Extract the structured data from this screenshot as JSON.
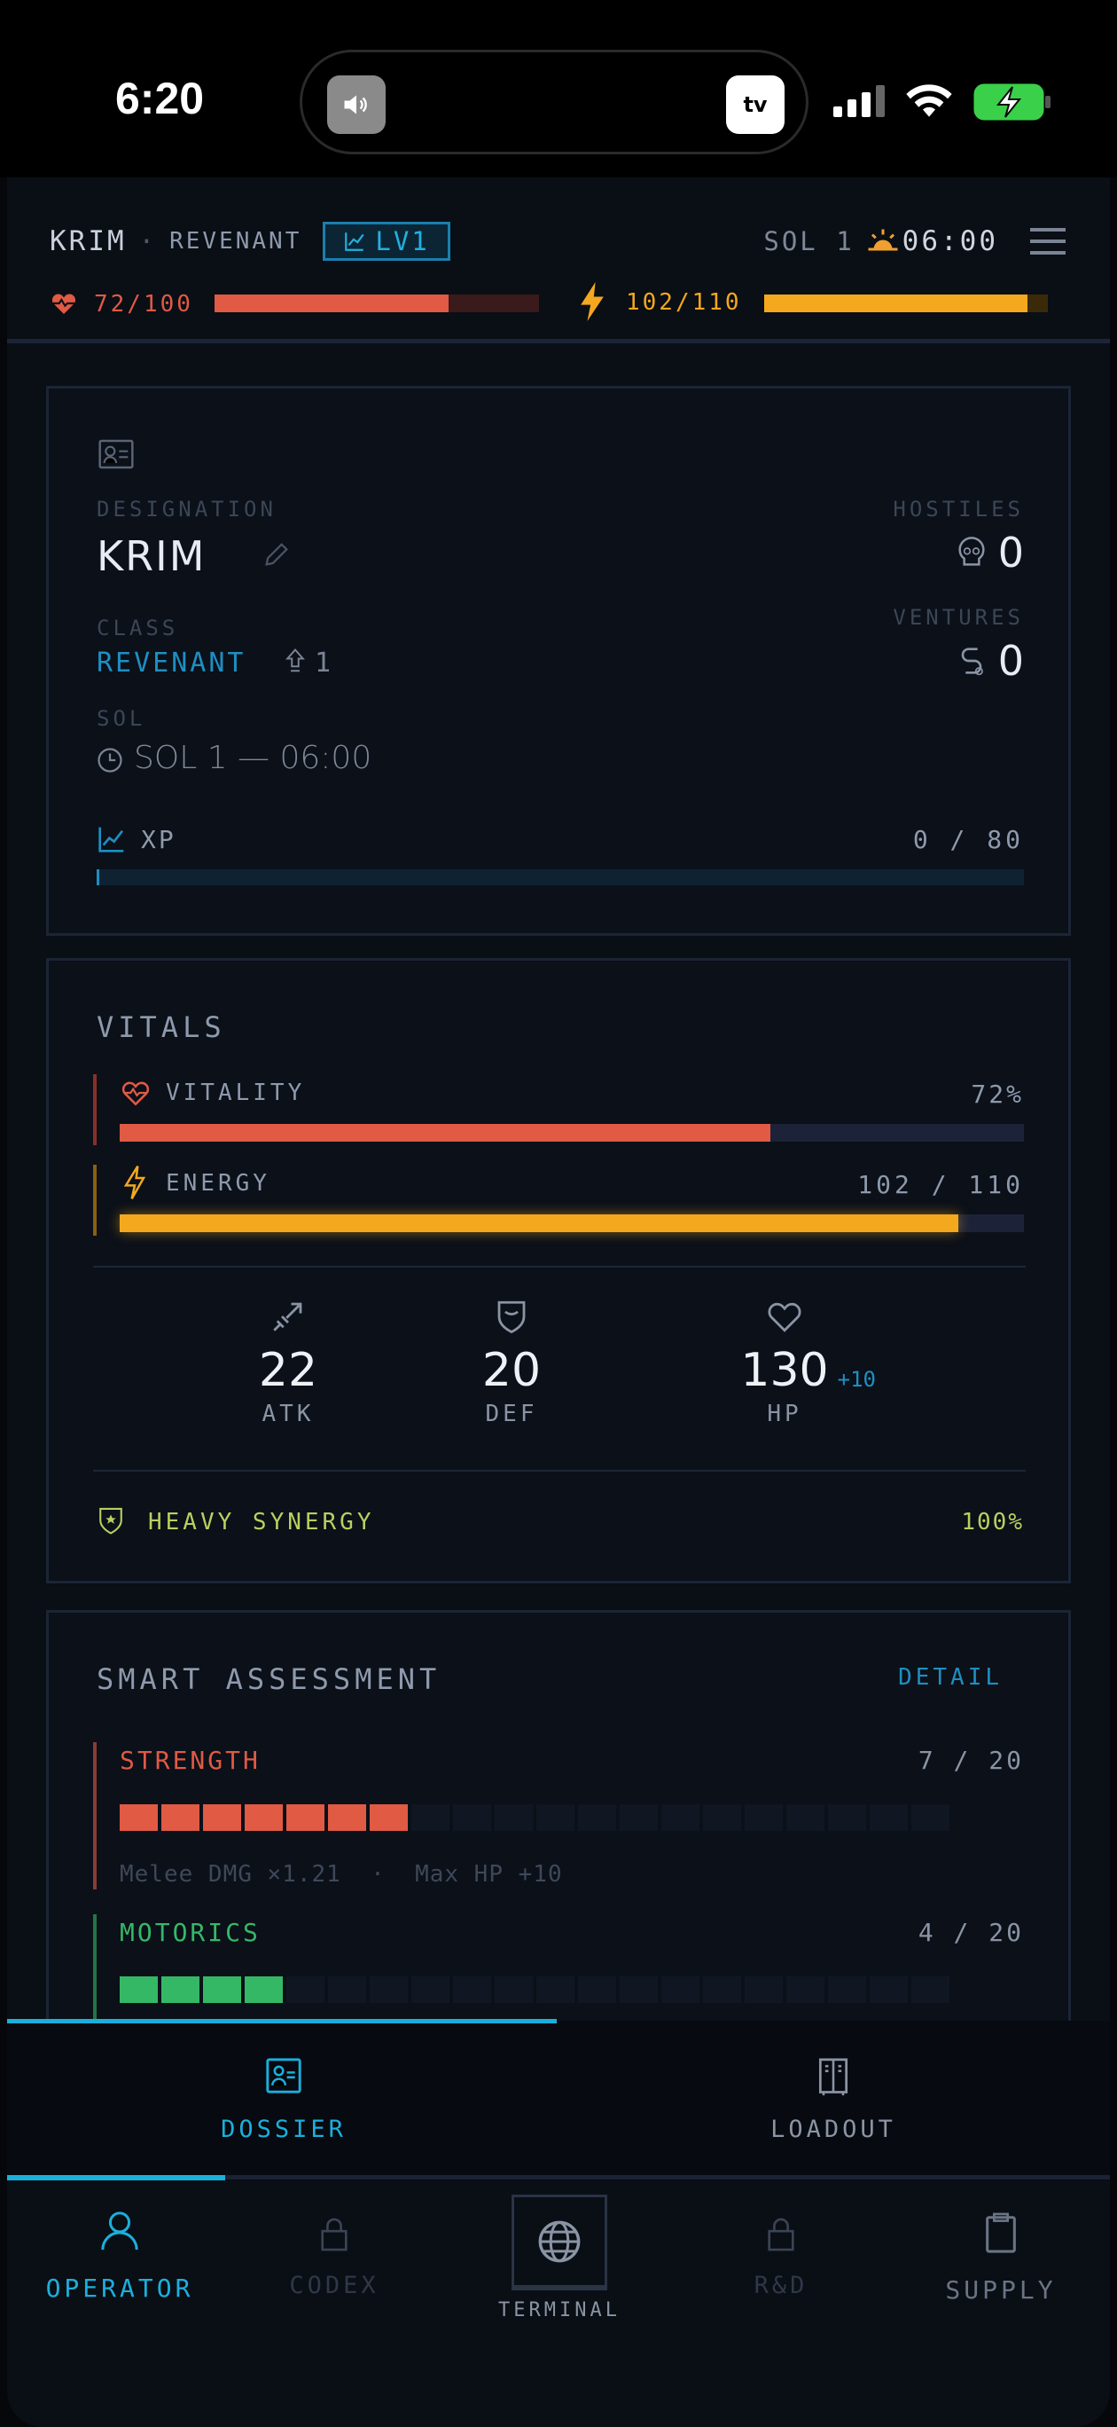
{
  "status_bar": {
    "time": "6:20",
    "speaker_icon": "speaker-icon",
    "appletv_label": "tv"
  },
  "header": {
    "name": "KRIM",
    "separator": "·",
    "class": "REVENANT",
    "level": "LV1",
    "sol": "SOL 1",
    "clock": "06:00",
    "hp": "72/100",
    "hp_pct": 72,
    "energy": "102/110",
    "energy_pct": 92.7,
    "colors": {
      "hp": "#e05a44",
      "energy": "#f3a81d",
      "accent": "#1ea5d6"
    }
  },
  "dossier": {
    "designation_label": "DESIGNATION",
    "name": "KRIM",
    "class_label": "CLASS",
    "class": "REVENANT",
    "class_rank": "1",
    "sol_label": "SOL",
    "sol_value": "SOL 1 — 06:00",
    "hostiles_label": "HOSTILES",
    "hostiles": "0",
    "ventures_label": "VENTURES",
    "ventures": "0",
    "xp_label": "XP",
    "xp_value": "0 / 80",
    "xp_pct": 0
  },
  "vitals": {
    "title": "VITALS",
    "vitality_label": "VITALITY",
    "vitality_value": "72%",
    "vitality_pct": 72,
    "energy_label": "ENERGY",
    "energy_value": "102 / 110",
    "energy_pct": 92.7,
    "stats": [
      {
        "value": "22",
        "label": "ATK",
        "bonus": ""
      },
      {
        "value": "20",
        "label": "DEF",
        "bonus": ""
      },
      {
        "value": "130",
        "label": "HP",
        "bonus": "+10"
      }
    ],
    "synergy_label": "HEAVY SYNERGY",
    "synergy_value": "100%"
  },
  "assessment": {
    "title": "SMART ASSESSMENT",
    "detail": "DETAIL",
    "attributes": [
      {
        "name": "STRENGTH",
        "value": "7 / 20",
        "level": 7,
        "max": 20,
        "effects": "Melee DMG ×1.21  ·  Max HP +10",
        "color": "#e05a44"
      },
      {
        "name": "MOTORICS",
        "value": "4 / 20",
        "level": 4,
        "max": 20,
        "effects": "",
        "color": "#35b866"
      }
    ]
  },
  "subtabs": [
    {
      "label": "DOSSIER",
      "active": true
    },
    {
      "label": "LOADOUT",
      "active": false
    }
  ],
  "nav": [
    {
      "label": "OPERATOR",
      "active": true
    },
    {
      "label": "CODEX",
      "locked": true
    },
    {
      "label": "TERMINAL"
    },
    {
      "label": "R&D",
      "locked": true
    },
    {
      "label": "SUPPLY"
    }
  ]
}
